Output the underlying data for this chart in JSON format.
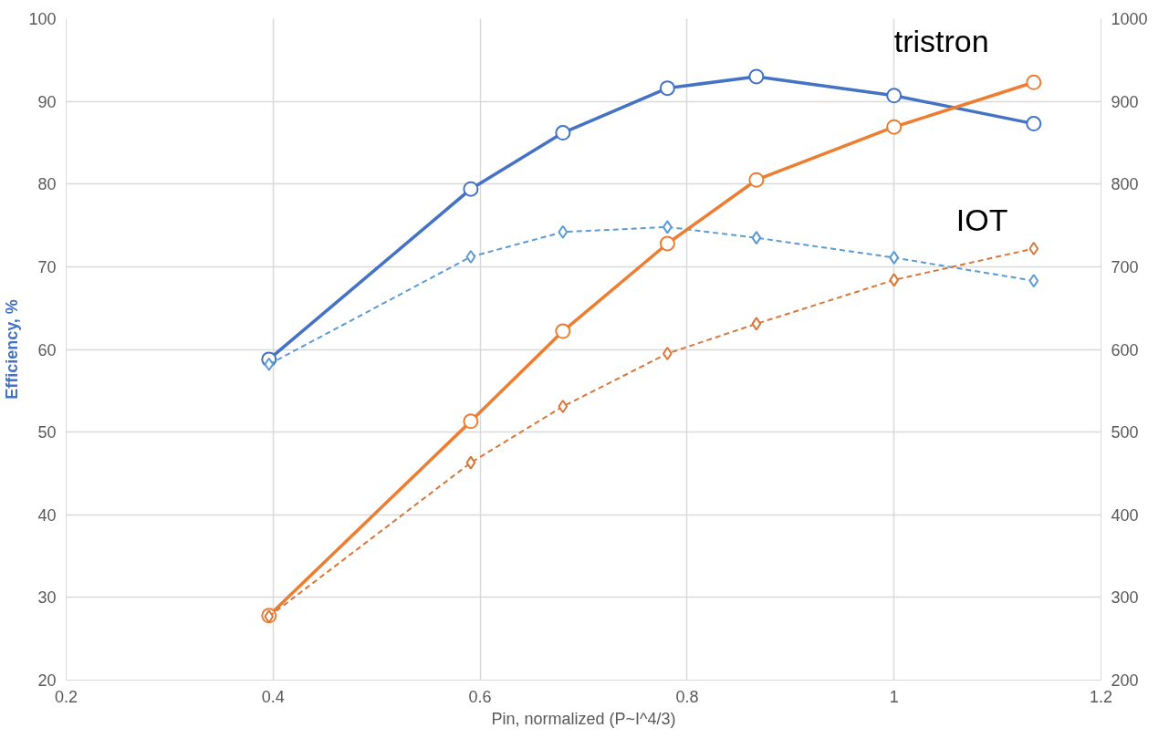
{
  "chart_data": {
    "type": "line",
    "xlabel": "Pin, normalized (P~I^4/3)",
    "ylabel": "Efficiency, %",
    "xlim": [
      0.2,
      1.2
    ],
    "xticks": [
      0.2,
      0.4,
      0.6,
      0.8,
      {
        "value": 1.0,
        "label": "1"
      },
      1.2
    ],
    "ylim": [
      20,
      100
    ],
    "yticks": [
      20,
      30,
      40,
      50,
      60,
      70,
      80,
      90,
      100
    ],
    "y2lim": [
      200,
      1000
    ],
    "y2ticks": [
      200,
      300,
      400,
      500,
      600,
      700,
      800,
      900,
      1000
    ],
    "grid": true,
    "x": [
      0.396,
      0.591,
      0.68,
      0.781,
      0.867,
      1.0,
      1.135
    ],
    "series": [
      {
        "color": "#4472c4",
        "marker": "circle",
        "line_style": "solid",
        "values": [
          58.8,
          79.4,
          86.2,
          91.6,
          93.0,
          90.7,
          87.3
        ]
      },
      {
        "color": "#5b9bd5",
        "marker": "diamond",
        "line_style": "dashed",
        "values": [
          58.2,
          71.2,
          74.2,
          74.8,
          73.5,
          71.1,
          68.3
        ]
      },
      {
        "color": "#ed7d31",
        "marker": "circle",
        "line_style": "solid",
        "axis": "y2",
        "values": [
          278,
          513,
          622,
          728,
          805,
          869,
          923
        ]
      },
      {
        "color": "#d9773a",
        "marker": "diamond",
        "line_style": "dashed",
        "axis": "y2",
        "values": [
          277,
          463,
          531,
          595,
          631,
          684,
          722
        ]
      }
    ],
    "annotations": [
      "tristron",
      "IOT"
    ]
  }
}
